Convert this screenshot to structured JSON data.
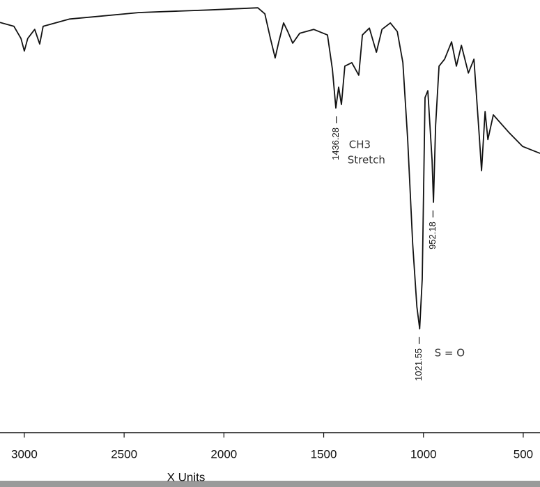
{
  "chart_data": {
    "type": "line",
    "xlabel": "X Units",
    "x": [
      3122,
      3052,
      3017,
      3000,
      2983,
      2948,
      2923,
      2906,
      2773,
      2424,
      2075,
      1830,
      1795,
      1767,
      1743,
      1725,
      1701,
      1680,
      1655,
      1620,
      1550,
      1481,
      1456,
      1439,
      1425,
      1411,
      1394,
      1359,
      1324,
      1306,
      1271,
      1236,
      1208,
      1166,
      1131,
      1103,
      1079,
      1054,
      1033,
      1019,
      1006,
      992,
      978,
      957,
      950,
      939,
      922,
      894,
      859,
      835,
      810,
      775,
      747,
      719,
      709,
      691,
      677,
      650,
      573,
      503,
      416
    ],
    "series": [
      {
        "name": null,
        "color": "#111111",
        "values": [
          94.8,
          93.9,
          91.1,
          88.2,
          91.1,
          93.2,
          89.8,
          93.9,
          95.6,
          97.1,
          97.7,
          98.2,
          96.8,
          91.1,
          86.6,
          90.3,
          94.7,
          92.7,
          90,
          92.3,
          93.2,
          91.9,
          83.9,
          75,
          79.8,
          75.8,
          84.7,
          85.5,
          82.6,
          91.9,
          93.5,
          87.9,
          93.2,
          94.7,
          92.7,
          85.5,
          67.7,
          43.5,
          29,
          23.9,
          35.5,
          77.4,
          79,
          62.9,
          53.2,
          71,
          84.7,
          86.3,
          90.3,
          84.7,
          89.5,
          83.1,
          86.3,
          67.7,
          60.5,
          74.2,
          67.7,
          73.4,
          69.4,
          66.1,
          64.5
        ]
      }
    ],
    "xlim": [
      3122,
      416
    ],
    "ylim": [
      0,
      100
    ],
    "xticks": [
      3000,
      2500,
      2000,
      1500,
      1000,
      500
    ],
    "grid": false,
    "annotations": [
      {
        "label": "1436.28",
        "x": 1436.28,
        "y": 75
      },
      {
        "label": "952.18",
        "x": 952.18,
        "y": 53.2
      },
      {
        "label": "1021.55",
        "x": 1021.55,
        "y": 23.9
      }
    ],
    "notes": [
      "CH3",
      "Stretch",
      "S = O"
    ]
  }
}
